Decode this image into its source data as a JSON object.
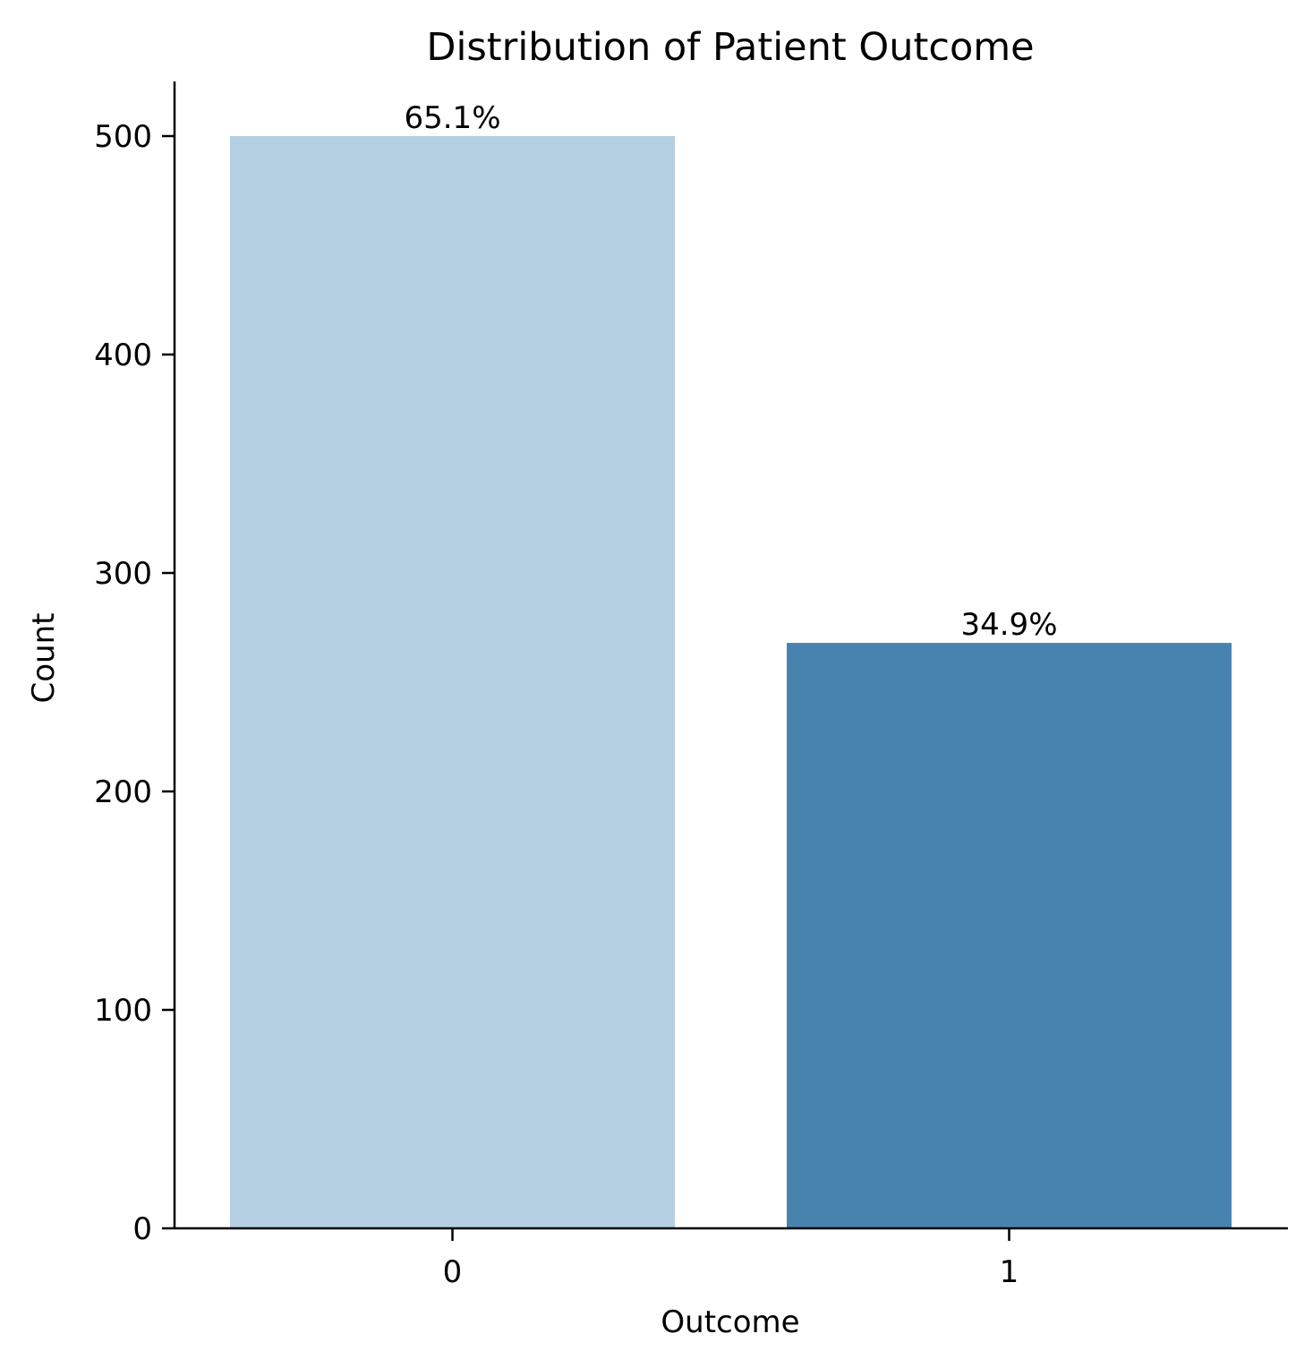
{
  "chart_data": {
    "type": "bar",
    "title": "Distribution of Patient Outcome",
    "xlabel": "Outcome",
    "ylabel": "Count",
    "categories": [
      "0",
      "1"
    ],
    "values": [
      500,
      268
    ],
    "data_labels": [
      "65.1%",
      "34.9%"
    ],
    "colors": [
      "#b3cfe1",
      "#4883b0"
    ],
    "ylim": [
      0,
      525
    ],
    "yticks": [
      0,
      100,
      200,
      300,
      400,
      500
    ],
    "grid": false,
    "legend": "none"
  }
}
